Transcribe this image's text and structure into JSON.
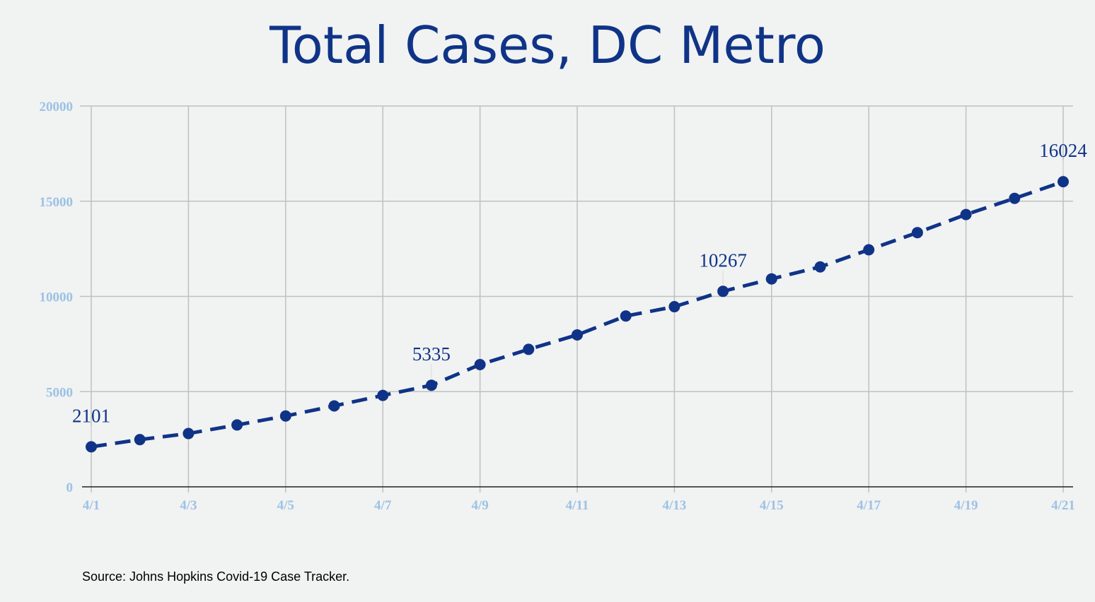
{
  "chart_data": {
    "type": "line",
    "title": "Total Cases, DC Metro",
    "xlabel": "",
    "ylabel": "",
    "x": [
      "4/1",
      "4/2",
      "4/3",
      "4/4",
      "4/5",
      "4/6",
      "4/7",
      "4/8",
      "4/9",
      "4/10",
      "4/11",
      "4/12",
      "4/13",
      "4/14",
      "4/15",
      "4/16",
      "4/17",
      "4/18",
      "4/19",
      "4/20",
      "4/21"
    ],
    "x_tick_labels": [
      "4/1",
      "4/3",
      "4/5",
      "4/7",
      "4/9",
      "4/11",
      "4/13",
      "4/15",
      "4/17",
      "4/19",
      "4/21"
    ],
    "series": [
      {
        "name": "",
        "values": [
          2101,
          2480,
          2800,
          3250,
          3720,
          4250,
          4800,
          5335,
          6420,
          7220,
          7980,
          8970,
          9460,
          10267,
          10920,
          11550,
          12450,
          13350,
          14300,
          15150,
          16024
        ],
        "line_style": "dashed",
        "marker": "circle",
        "color": "#0f3487"
      }
    ],
    "data_labels": [
      {
        "x": "4/1",
        "text": "2101"
      },
      {
        "x": "4/8",
        "text": "5335"
      },
      {
        "x": "4/14",
        "text": "10267"
      },
      {
        "x": "4/21",
        "text": "16024"
      }
    ],
    "ylim": [
      0,
      20000
    ],
    "y_ticks": [
      0,
      5000,
      10000,
      15000,
      20000
    ],
    "grid": true,
    "legend": "none",
    "colors": {
      "title": "#0f3487",
      "line": "#0f3487",
      "tick_labels": "#9cc2e5",
      "grid": "#c0c0c0",
      "background": "#f1f2f2"
    }
  },
  "source_note": "Source: Johns Hopkins Covid-19 Case Tracker."
}
